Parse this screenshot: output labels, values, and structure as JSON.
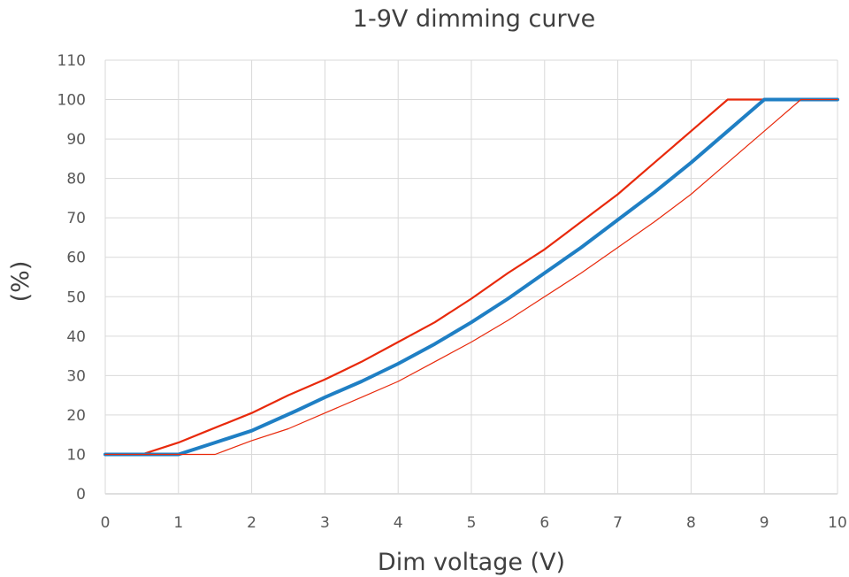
{
  "chart_data": {
    "type": "line",
    "title": "1-9V dimming curve",
    "xlabel": "Dim voltage (V)",
    "ylabel": "(%)",
    "xlim": [
      0,
      10
    ],
    "ylim": [
      0,
      110
    ],
    "x_ticks": [
      "0",
      "1",
      "2",
      "3",
      "4",
      "5",
      "6",
      "7",
      "8",
      "9",
      "10"
    ],
    "y_ticks": [
      "0",
      "10",
      "20",
      "30",
      "40",
      "50",
      "60",
      "70",
      "80",
      "90",
      "100",
      "110"
    ],
    "grid": true,
    "legend": "none",
    "series": [
      {
        "color": "#e8290b",
        "stroke_weight": "medium",
        "points": [
          [
            0,
            10
          ],
          [
            0.5,
            10
          ],
          [
            1,
            13
          ],
          [
            1.4,
            16
          ],
          [
            2,
            20.5
          ],
          [
            2.5,
            25
          ],
          [
            3,
            29
          ],
          [
            3.5,
            33.5
          ],
          [
            4,
            38.5
          ],
          [
            4.5,
            43.5
          ],
          [
            5,
            49.5
          ],
          [
            5.5,
            56
          ],
          [
            6,
            62
          ],
          [
            6.5,
            69
          ],
          [
            7,
            76
          ],
          [
            7.5,
            84
          ],
          [
            8,
            92
          ],
          [
            8.5,
            100
          ],
          [
            9,
            100
          ],
          [
            10,
            100
          ]
        ]
      },
      {
        "color": "#1f7fc4",
        "stroke_weight": "thick",
        "points": [
          [
            0,
            10
          ],
          [
            1,
            10
          ],
          [
            1.5,
            13
          ],
          [
            2,
            16
          ],
          [
            2.6,
            21
          ],
          [
            3,
            24.5
          ],
          [
            3.5,
            28.5
          ],
          [
            4,
            33
          ],
          [
            4.5,
            38
          ],
          [
            5,
            43.5
          ],
          [
            5.5,
            49.5
          ],
          [
            6,
            56
          ],
          [
            6.5,
            62.5
          ],
          [
            7,
            69.5
          ],
          [
            7.5,
            76.5
          ],
          [
            8,
            84
          ],
          [
            8.5,
            92
          ],
          [
            9,
            100
          ],
          [
            10,
            100
          ]
        ]
      },
      {
        "color": "#e8290b",
        "stroke_weight": "thin",
        "points": [
          [
            0,
            10
          ],
          [
            1.5,
            10
          ],
          [
            2,
            13.5
          ],
          [
            2.5,
            16.5
          ],
          [
            3,
            20.5
          ],
          [
            3.5,
            24.5
          ],
          [
            4,
            28.5
          ],
          [
            4.5,
            33.5
          ],
          [
            5,
            38.5
          ],
          [
            5.5,
            44
          ],
          [
            6,
            50
          ],
          [
            6.5,
            56
          ],
          [
            7,
            62.5
          ],
          [
            7.5,
            69
          ],
          [
            8,
            76
          ],
          [
            8.5,
            84
          ],
          [
            9,
            92
          ],
          [
            9.5,
            100
          ],
          [
            10,
            100
          ]
        ]
      }
    ]
  }
}
